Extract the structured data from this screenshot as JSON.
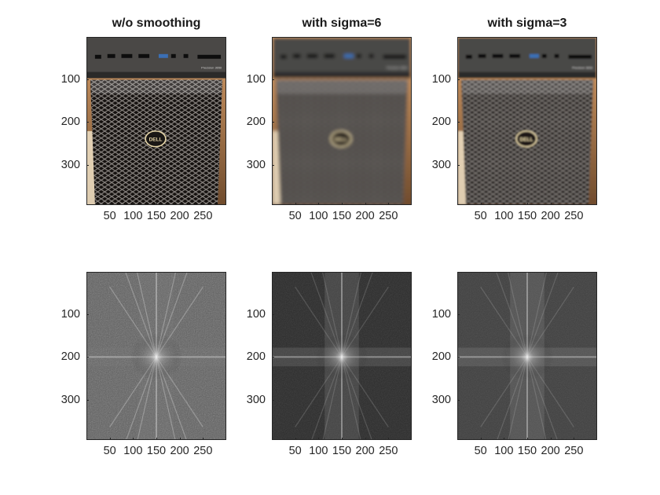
{
  "figure": {
    "panels": [
      {
        "id": "photo-raw",
        "title": "w/o smoothing",
        "kind": "photo",
        "blur": 0,
        "logo_text": "DELL",
        "model_text": "Precision 3650",
        "yticks": [
          "100",
          "200",
          "300"
        ],
        "xticks": [
          "50",
          "100",
          "150",
          "200",
          "250"
        ]
      },
      {
        "id": "photo-sigma6",
        "title": "with sigma=6",
        "kind": "photo",
        "blur": 2.2,
        "logo_text": "DELL",
        "model_text": "Precision 3650",
        "yticks": [
          "100",
          "200",
          "300"
        ],
        "xticks": [
          "50",
          "100",
          "150",
          "200",
          "250"
        ]
      },
      {
        "id": "photo-sigma3",
        "title": "with sigma=3",
        "kind": "photo",
        "blur": 1.0,
        "logo_text": "DELL",
        "model_text": "Precision 3650",
        "yticks": [
          "100",
          "200",
          "300"
        ],
        "xticks": [
          "50",
          "100",
          "150",
          "200",
          "250"
        ]
      },
      {
        "id": "spectrum-raw",
        "title": "",
        "kind": "spectrum",
        "background": "#5c5c5c",
        "yticks": [
          "100",
          "200",
          "300"
        ],
        "xticks": [
          "50",
          "100",
          "150",
          "200",
          "250"
        ]
      },
      {
        "id": "spectrum-sigma6",
        "title": "",
        "kind": "spectrum",
        "background": "#2a2a2a",
        "yticks": [
          "100",
          "200",
          "300"
        ],
        "xticks": [
          "50",
          "100",
          "150",
          "200",
          "250"
        ]
      },
      {
        "id": "spectrum-sigma3",
        "title": "",
        "kind": "spectrum",
        "background": "#3e3e3e",
        "yticks": [
          "100",
          "200",
          "300"
        ],
        "xticks": [
          "50",
          "100",
          "150",
          "200",
          "250"
        ]
      }
    ]
  }
}
